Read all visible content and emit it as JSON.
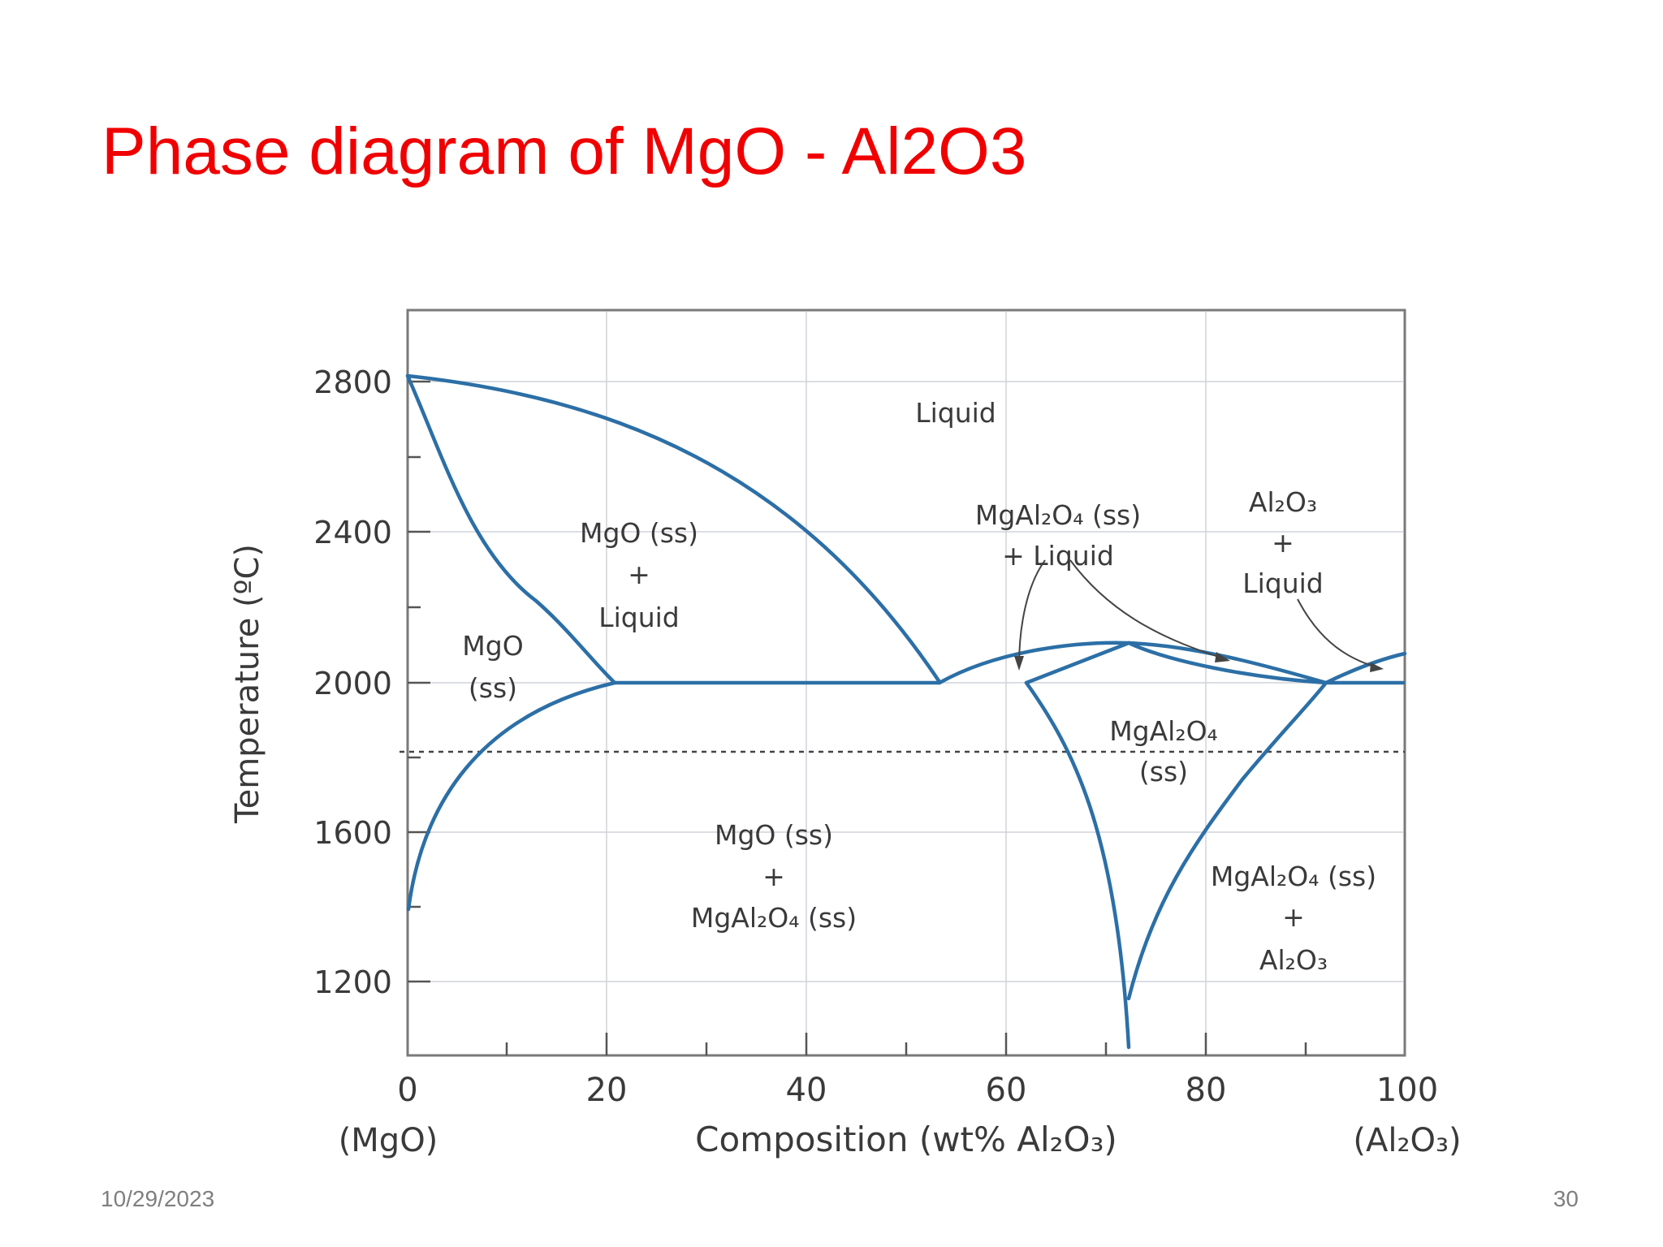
{
  "slide": {
    "title": "Phase diagram of MgO - Al2O3",
    "date": "10/29/2023",
    "page_number": "30"
  },
  "diagram": {
    "axes": {
      "y_label": "Temperature (ºC)",
      "x_label": "Composition (wt% Al₂O₃)",
      "x_ticks": [
        "0",
        "20",
        "40",
        "60",
        "80",
        "100"
      ],
      "y_ticks": [
        "2800",
        "2400",
        "2000",
        "1600",
        "1200"
      ],
      "x_left_end_label": "(MgO)",
      "x_right_end_label": "(Al₂O₃)"
    },
    "regions": {
      "liquid": "Liquid",
      "mgo_ss_liquid": [
        "MgO (ss)",
        "+",
        "Liquid"
      ],
      "mgo_ss": [
        "MgO",
        "(ss)"
      ],
      "spinel_liquid": [
        "MgAl₂O₄ (ss)",
        "+ Liquid"
      ],
      "alumina_liquid": [
        "Al₂O₃",
        "+",
        "Liquid"
      ],
      "spinel_ss": [
        "MgAl₂O₄",
        "(ss)"
      ],
      "mgo_spinel": [
        "MgO (ss)",
        "+",
        "MgAl₂O₄ (ss)"
      ],
      "spinel_alumina": [
        "MgAl₂O₄ (ss)",
        "+",
        "Al₂O₃"
      ]
    },
    "colors": {
      "boundary": "#2c6fa6",
      "title": "#f00000",
      "grid": "#cfd4da"
    }
  }
}
